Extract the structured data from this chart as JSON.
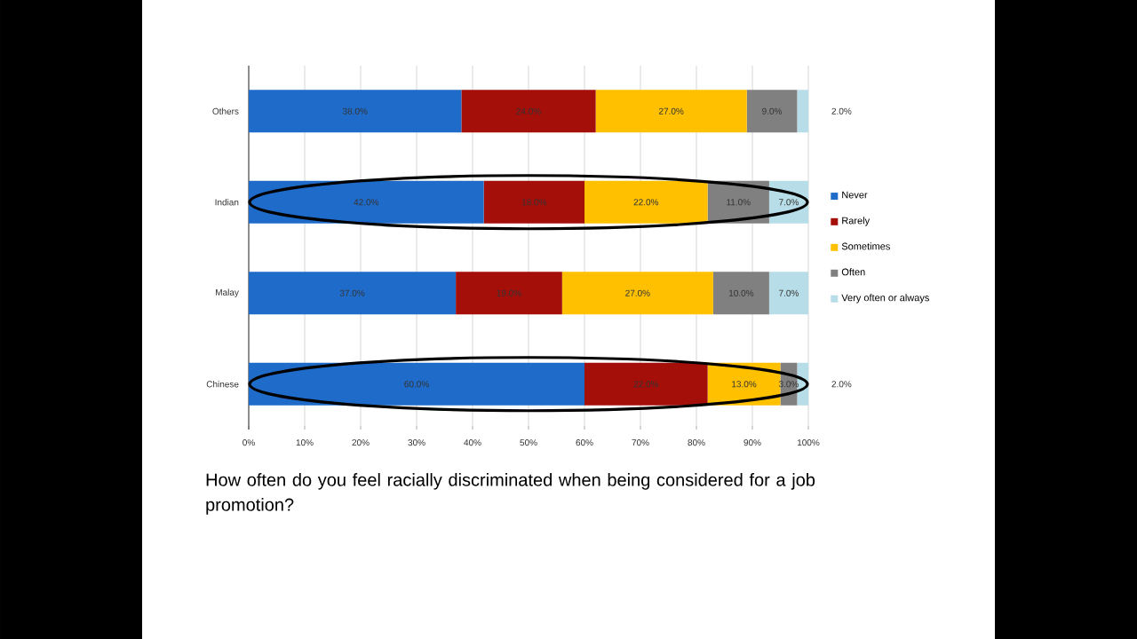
{
  "chart_data": {
    "type": "bar",
    "orientation": "horizontal",
    "stacked": true,
    "categories": [
      "Others",
      "Indian",
      "Malay",
      "Chinese"
    ],
    "series": [
      {
        "name": "Never",
        "color": "#1f6bc9",
        "values": [
          38,
          42,
          37,
          60
        ],
        "value_labels": [
          "38.0%",
          "42.0%",
          "37.0%",
          "60.0%"
        ]
      },
      {
        "name": "Rarely",
        "color": "#a50f0a",
        "values": [
          24,
          18,
          19,
          22
        ],
        "value_labels": [
          "24.0%",
          "18.0%",
          "19.0%",
          "22.0%"
        ]
      },
      {
        "name": "Sometimes",
        "color": "#ffc000",
        "values": [
          27,
          22,
          27,
          13
        ],
        "value_labels": [
          "27.0%",
          "22.0%",
          "27.0%",
          "13.0%"
        ]
      },
      {
        "name": "Often",
        "color": "#808080",
        "values": [
          9,
          11,
          10,
          3
        ],
        "value_labels": [
          "9.0%",
          "11.0%",
          "10.0%",
          "3.0%"
        ]
      },
      {
        "name": "Very often or always",
        "color": "#b7dde8",
        "values": [
          2,
          7,
          7,
          2
        ],
        "value_labels": [
          "2.0%",
          "7.0%",
          "7.0%",
          "2.0%"
        ]
      }
    ],
    "xlim": [
      0,
      100
    ],
    "xticks": [
      {
        "value": 0,
        "label": "0%"
      },
      {
        "value": 10,
        "label": "10%"
      },
      {
        "value": 20,
        "label": "20%"
      },
      {
        "value": 30,
        "label": "30%"
      },
      {
        "value": 40,
        "label": "40%"
      },
      {
        "value": 50,
        "label": "50%"
      },
      {
        "value": 60,
        "label": "60%"
      },
      {
        "value": 70,
        "label": "70%"
      },
      {
        "value": 80,
        "label": "80%"
      },
      {
        "value": 90,
        "label": "90%"
      },
      {
        "value": 100,
        "label": "100%"
      }
    ],
    "grid": "x",
    "legend": "right",
    "annotations": [
      "How often do you feel racially discriminated when being considered for a job promotion?"
    ]
  }
}
